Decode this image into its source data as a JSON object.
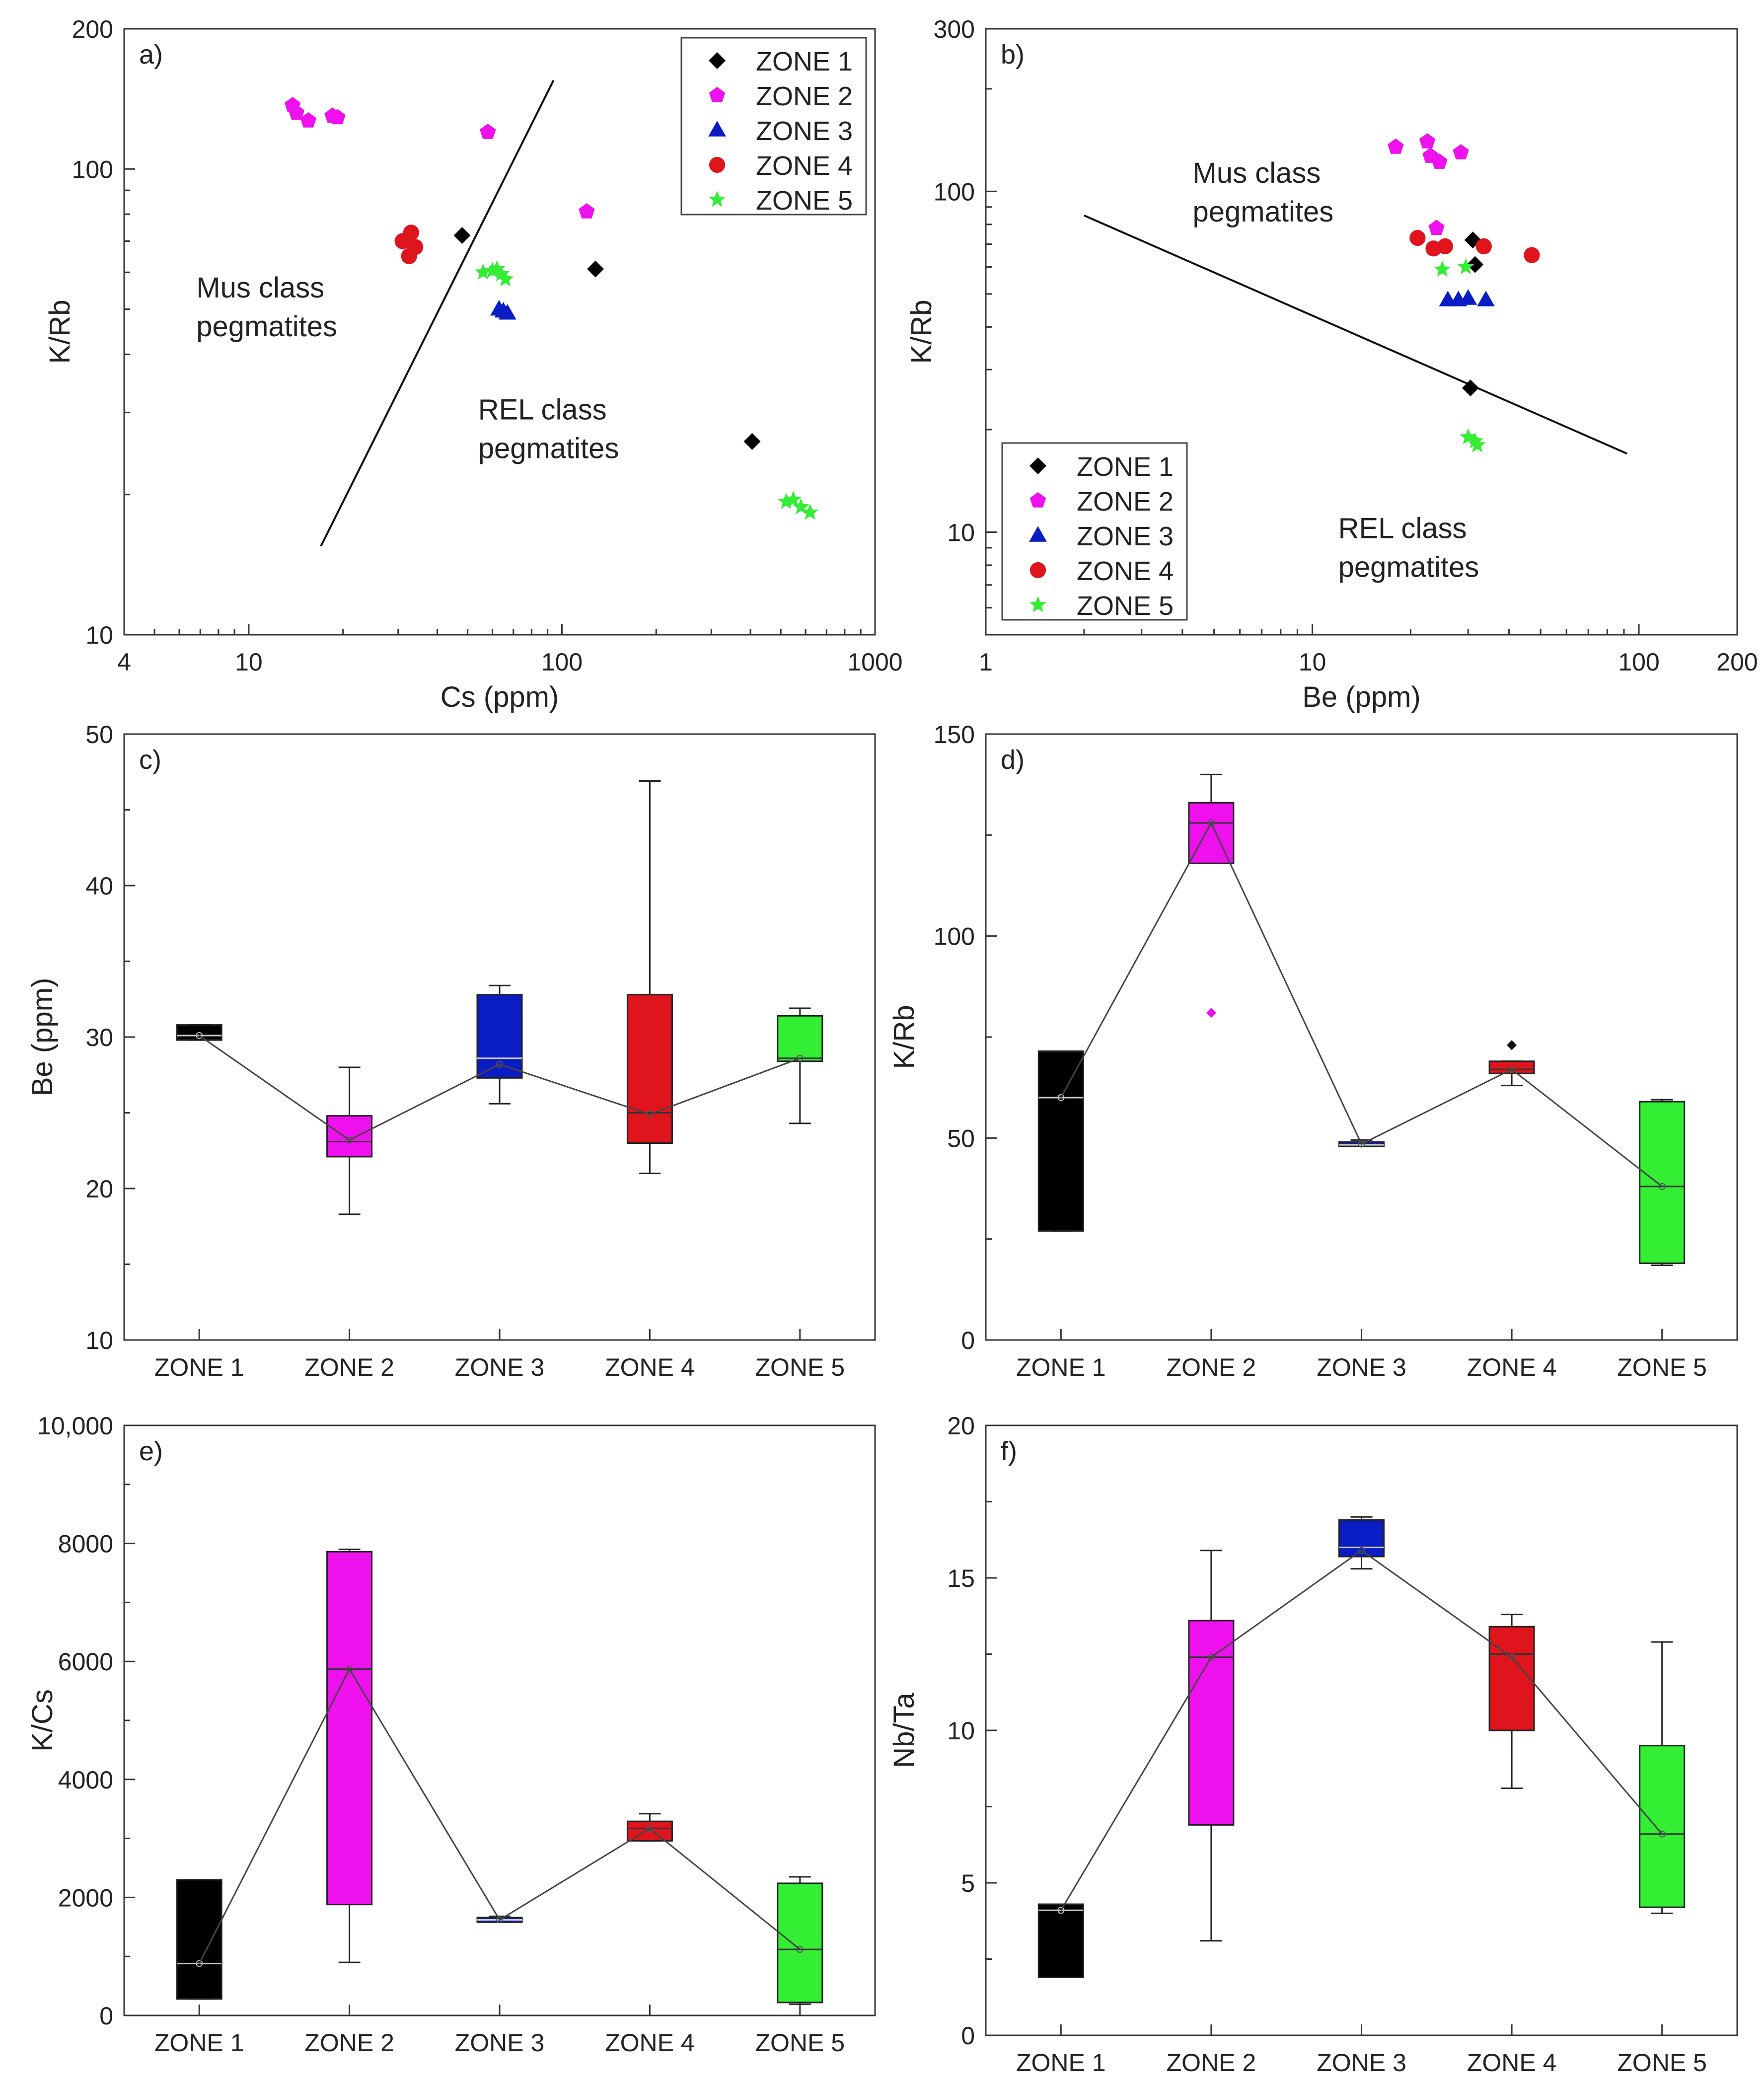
{
  "chart_data": [
    {
      "type": "scatter",
      "panel_label": "a)",
      "xlabel": "Cs (ppm)",
      "ylabel": "K/Rb",
      "xscale": "log",
      "yscale": "log",
      "xlim": [
        4,
        1000
      ],
      "ylim": [
        10,
        200
      ],
      "xticks": [
        {
          "v": 4,
          "t": "4"
        },
        {
          "v": 10,
          "t": "10"
        },
        {
          "v": 100,
          "t": "100"
        },
        {
          "v": 1000,
          "t": "1000"
        }
      ],
      "yticks": [
        {
          "v": 10,
          "t": "10"
        },
        {
          "v": 100,
          "t": "100"
        },
        {
          "v": 200,
          "t": "200"
        }
      ],
      "legend_position": "top-right",
      "divider": [
        [
          17,
          15.5
        ],
        [
          94,
          155
        ]
      ],
      "region_labels": [
        {
          "lines": [
            "Mus class",
            "pegmatites"
          ],
          "x": 6.8,
          "y": 53
        },
        {
          "lines": [
            "REL class",
            "pegmatites"
          ],
          "x": 54,
          "y": 29
        }
      ],
      "series": [
        {
          "name": "ZONE 1",
          "marker": "diamond",
          "color": "#000000",
          "points": [
            [
              48,
              72
            ],
            [
              128,
              61
            ],
            [
              405,
              26
            ]
          ]
        },
        {
          "name": "ZONE 2",
          "marker": "pentagon",
          "color": "#ee11ee",
          "points": [
            [
              13.8,
              137
            ],
            [
              14.2,
              132
            ],
            [
              15.5,
              127
            ],
            [
              18.5,
              130
            ],
            [
              19.2,
              129
            ],
            [
              58,
              120
            ],
            [
              120,
              81
            ]
          ]
        },
        {
          "name": "ZONE 3",
          "marker": "triangle",
          "color": "#0a1cc4",
          "points": [
            [
              63,
              50
            ],
            [
              65,
              49.5
            ],
            [
              67,
              49
            ]
          ]
        },
        {
          "name": "ZONE 4",
          "marker": "circle",
          "color": "#e0141c",
          "points": [
            [
              31,
              70
            ],
            [
              33,
              73
            ],
            [
              34,
              68
            ],
            [
              32.5,
              65
            ]
          ]
        },
        {
          "name": "ZONE 5",
          "marker": "star",
          "color": "#33ee33",
          "points": [
            [
              56,
              60
            ],
            [
              60,
              60.5
            ],
            [
              62,
              61
            ],
            [
              64,
              59.5
            ],
            [
              66,
              58
            ],
            [
              520,
              19.3
            ],
            [
              548,
              19.5
            ],
            [
              580,
              18.8
            ],
            [
              620,
              18.3
            ]
          ]
        }
      ]
    },
    {
      "type": "scatter",
      "panel_label": "b)",
      "xlabel": "Be (ppm)",
      "ylabel": "K/Rb",
      "xscale": "log",
      "yscale": "log",
      "xlim": [
        1,
        200
      ],
      "ylim": [
        5,
        300
      ],
      "xticks": [
        {
          "v": 1,
          "t": "1"
        },
        {
          "v": 10,
          "t": "10"
        },
        {
          "v": 100,
          "t": "100"
        },
        {
          "v": 200,
          "t": "200"
        }
      ],
      "yticks": [
        {
          "v": 10,
          "t": "10"
        },
        {
          "v": 100,
          "t": "100"
        },
        {
          "v": 300,
          "t": "300"
        }
      ],
      "legend_position": "bottom-left",
      "divider": [
        [
          2,
          85
        ],
        [
          92,
          17
        ]
      ],
      "region_labels": [
        {
          "lines": [
            "Mus class",
            "pegmatites"
          ],
          "x": 4.3,
          "y": 106
        },
        {
          "lines": [
            "REL class",
            "pegmatites"
          ],
          "x": 12,
          "y": 9.6
        }
      ],
      "series": [
        {
          "name": "ZONE 1",
          "marker": "diamond",
          "color": "#000000",
          "points": [
            [
              31,
              72
            ],
            [
              31.5,
              61
            ],
            [
              30.5,
              26.5
            ]
          ]
        },
        {
          "name": "ZONE 2",
          "marker": "pentagon",
          "color": "#ee11ee",
          "points": [
            [
              18,
              135
            ],
            [
              22.5,
              140
            ],
            [
              23,
              127
            ],
            [
              24.5,
              122
            ],
            [
              28.5,
              130
            ],
            [
              24,
              78
            ]
          ]
        },
        {
          "name": "ZONE 3",
          "marker": "triangle",
          "color": "#0a1cc4",
          "points": [
            [
              26,
              48
            ],
            [
              28,
              48
            ],
            [
              30,
              48.5
            ],
            [
              34,
              48
            ]
          ]
        },
        {
          "name": "ZONE 4",
          "marker": "circle",
          "color": "#e0141c",
          "points": [
            [
              21,
              73
            ],
            [
              23.5,
              68
            ],
            [
              25.5,
              69
            ],
            [
              33.5,
              69
            ],
            [
              47,
              65
            ]
          ]
        },
        {
          "name": "ZONE 5",
          "marker": "star",
          "color": "#33ee33",
          "points": [
            [
              25,
              59
            ],
            [
              29.5,
              60
            ],
            [
              30,
              19
            ],
            [
              31.5,
              18.5
            ],
            [
              32,
              18
            ]
          ]
        }
      ]
    },
    {
      "type": "box",
      "panel_label": "c)",
      "xlabel": "",
      "ylabel": "Be (ppm)",
      "ylim": [
        10,
        50
      ],
      "yticks": [
        {
          "v": 10,
          "t": "10"
        },
        {
          "v": 20,
          "t": "20"
        },
        {
          "v": 30,
          "t": "30"
        },
        {
          "v": 40,
          "t": "40"
        },
        {
          "v": 50,
          "t": "50"
        }
      ],
      "categories": [
        "ZONE 1",
        "ZONE 2",
        "ZONE 3",
        "ZONE 4",
        "ZONE 5"
      ],
      "colors": [
        "#000000",
        "#ee11ee",
        "#0a1cc4",
        "#e0141c",
        "#33ee33"
      ],
      "boxes": [
        {
          "min": 29.8,
          "q1": 29.8,
          "median": 30.1,
          "q3": 30.8,
          "max": 30.8,
          "mean": 30.1
        },
        {
          "min": 18.3,
          "q1": 22.1,
          "median": 23.1,
          "q3": 24.8,
          "max": 28.0,
          "mean": 23.2
        },
        {
          "min": 25.6,
          "q1": 27.3,
          "median": 28.6,
          "q3": 32.8,
          "max": 33.4,
          "mean": 28.2
        },
        {
          "min": 21.0,
          "q1": 23.0,
          "median": 25.0,
          "q3": 32.8,
          "max": 46.9,
          "mean": 24.9
        },
        {
          "min": 24.3,
          "q1": 28.4,
          "median": 28.6,
          "q3": 31.4,
          "max": 31.9,
          "mean": 28.6
        }
      ],
      "outliers": []
    },
    {
      "type": "box",
      "panel_label": "d)",
      "xlabel": "",
      "ylabel": "K/Rb",
      "ylim": [
        0,
        150
      ],
      "yticks": [
        {
          "v": 0,
          "t": "0"
        },
        {
          "v": 50,
          "t": "50"
        },
        {
          "v": 100,
          "t": "100"
        },
        {
          "v": 150,
          "t": "150"
        }
      ],
      "categories": [
        "ZONE 1",
        "ZONE 2",
        "ZONE 3",
        "ZONE 4",
        "ZONE 5"
      ],
      "colors": [
        "#000000",
        "#ee11ee",
        "#0a1cc4",
        "#e0141c",
        "#33ee33"
      ],
      "boxes": [
        {
          "min": 27,
          "q1": 27,
          "median": 60,
          "q3": 71.5,
          "max": 71.5,
          "mean": 60
        },
        {
          "min": 118,
          "q1": 118,
          "median": 128,
          "q3": 133,
          "max": 140,
          "mean": 128
        },
        {
          "min": 48,
          "q1": 48,
          "median": 48.3,
          "q3": 49,
          "max": 49.5,
          "mean": 48.5
        },
        {
          "min": 63,
          "q1": 66,
          "median": 67,
          "q3": 69,
          "max": 69,
          "mean": 67
        },
        {
          "min": 18.5,
          "q1": 19,
          "median": 38,
          "q3": 59,
          "max": 59.5,
          "mean": 38
        }
      ],
      "outliers": [
        {
          "zone": 1,
          "value": 81
        },
        {
          "zone": 3,
          "value": 73
        }
      ]
    },
    {
      "type": "box",
      "panel_label": "e)",
      "xlabel": "",
      "ylabel": "K/Cs",
      "ylim": [
        0,
        10000
      ],
      "yticks": [
        {
          "v": 0,
          "t": "0"
        },
        {
          "v": 2000,
          "t": "2000"
        },
        {
          "v": 4000,
          "t": "4000"
        },
        {
          "v": 6000,
          "t": "6000"
        },
        {
          "v": 8000,
          "t": "8000"
        },
        {
          "v": 10000,
          "t": "10,000"
        }
      ],
      "categories": [
        "ZONE 1",
        "ZONE 2",
        "ZONE 3",
        "ZONE 4",
        "ZONE 5"
      ],
      "colors": [
        "#000000",
        "#ee11ee",
        "#0a1cc4",
        "#e0141c",
        "#33ee33"
      ],
      "boxes": [
        {
          "min": 280,
          "q1": 280,
          "median": 880,
          "q3": 2300,
          "max": 2300,
          "mean": 880
        },
        {
          "min": 900,
          "q1": 1880,
          "median": 5870,
          "q3": 7860,
          "max": 7900,
          "mean": 5870
        },
        {
          "min": 1580,
          "q1": 1580,
          "median": 1620,
          "q3": 1660,
          "max": 1680,
          "mean": 1620
        },
        {
          "min": 2960,
          "q1": 2960,
          "median": 3170,
          "q3": 3290,
          "max": 3420,
          "mean": 3170
        },
        {
          "min": 190,
          "q1": 220,
          "median": 1120,
          "q3": 2240,
          "max": 2350,
          "mean": 1120
        }
      ],
      "outliers": []
    },
    {
      "type": "box",
      "panel_label": "f)",
      "xlabel": "",
      "ylabel": "Nb/Ta",
      "ylim": [
        0,
        20
      ],
      "yticks": [
        {
          "v": 0,
          "t": "0"
        },
        {
          "v": 5,
          "t": "5"
        },
        {
          "v": 10,
          "t": "10"
        },
        {
          "v": 15,
          "t": "15"
        },
        {
          "v": 20,
          "t": "20"
        }
      ],
      "categories": [
        "ZONE 1",
        "ZONE 2",
        "ZONE 3",
        "ZONE 4",
        "ZONE 5"
      ],
      "colors": [
        "#000000",
        "#ee11ee",
        "#0a1cc4",
        "#e0141c",
        "#33ee33"
      ],
      "boxes": [
        {
          "min": 1.9,
          "q1": 1.9,
          "median": 4.1,
          "q3": 4.3,
          "max": 4.3,
          "mean": 4.1
        },
        {
          "min": 3.1,
          "q1": 6.9,
          "median": 12.4,
          "q3": 13.6,
          "max": 15.9,
          "mean": 12.4
        },
        {
          "min": 15.3,
          "q1": 15.7,
          "median": 16.0,
          "q3": 16.9,
          "max": 17.0,
          "mean": 15.9
        },
        {
          "min": 8.1,
          "q1": 10.0,
          "median": 12.5,
          "q3": 13.4,
          "max": 13.8,
          "mean": 12.4
        },
        {
          "min": 4.0,
          "q1": 4.2,
          "median": 6.6,
          "q3": 9.5,
          "max": 12.9,
          "mean": 6.6
        }
      ],
      "outliers": []
    }
  ]
}
